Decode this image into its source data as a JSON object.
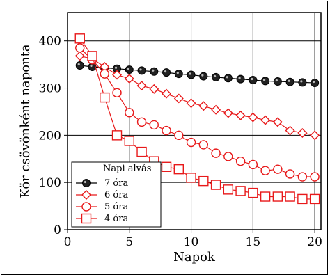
{
  "chart_data": {
    "type": "line",
    "xlabel": "Napok",
    "ylabel": "Kör csövönként naponta",
    "xlim": [
      0,
      20.5
    ],
    "ylim": [
      0,
      460
    ],
    "x_ticks": [
      0,
      5,
      10,
      15,
      20
    ],
    "y_ticks": [
      0,
      100,
      200,
      300,
      400
    ],
    "grid": true,
    "legend_title": "Napi alvás",
    "legend_position": "bottom-left",
    "x": [
      1,
      2,
      3,
      4,
      5,
      6,
      7,
      8,
      9,
      10,
      11,
      12,
      13,
      14,
      15,
      16,
      17,
      18,
      19,
      20
    ],
    "series": [
      {
        "name": "7 óra",
        "marker": "filled-circle",
        "color": "#000000",
        "values": [
          348,
          345,
          343,
          341,
          339,
          337,
          335,
          333,
          330,
          328,
          325,
          323,
          321,
          319,
          317,
          315,
          314,
          313,
          312,
          311
        ]
      },
      {
        "name": "6 óra",
        "marker": "diamond",
        "color": "#e8191a",
        "values": [
          368,
          362,
          345,
          328,
          320,
          305,
          298,
          288,
          278,
          268,
          262,
          254,
          247,
          242,
          238,
          232,
          228,
          210,
          205,
          200
        ]
      },
      {
        "name": "5 óra",
        "marker": "circle",
        "color": "#e8191a",
        "values": [
          385,
          360,
          330,
          290,
          248,
          228,
          222,
          210,
          200,
          185,
          180,
          162,
          155,
          145,
          138,
          125,
          128,
          118,
          112,
          112
        ]
      },
      {
        "name": "4 óra",
        "marker": "square",
        "color": "#e8191a",
        "values": [
          405,
          368,
          280,
          200,
          188,
          165,
          145,
          133,
          128,
          110,
          103,
          95,
          85,
          82,
          78,
          70,
          70,
          70,
          65,
          65
        ]
      }
    ]
  }
}
